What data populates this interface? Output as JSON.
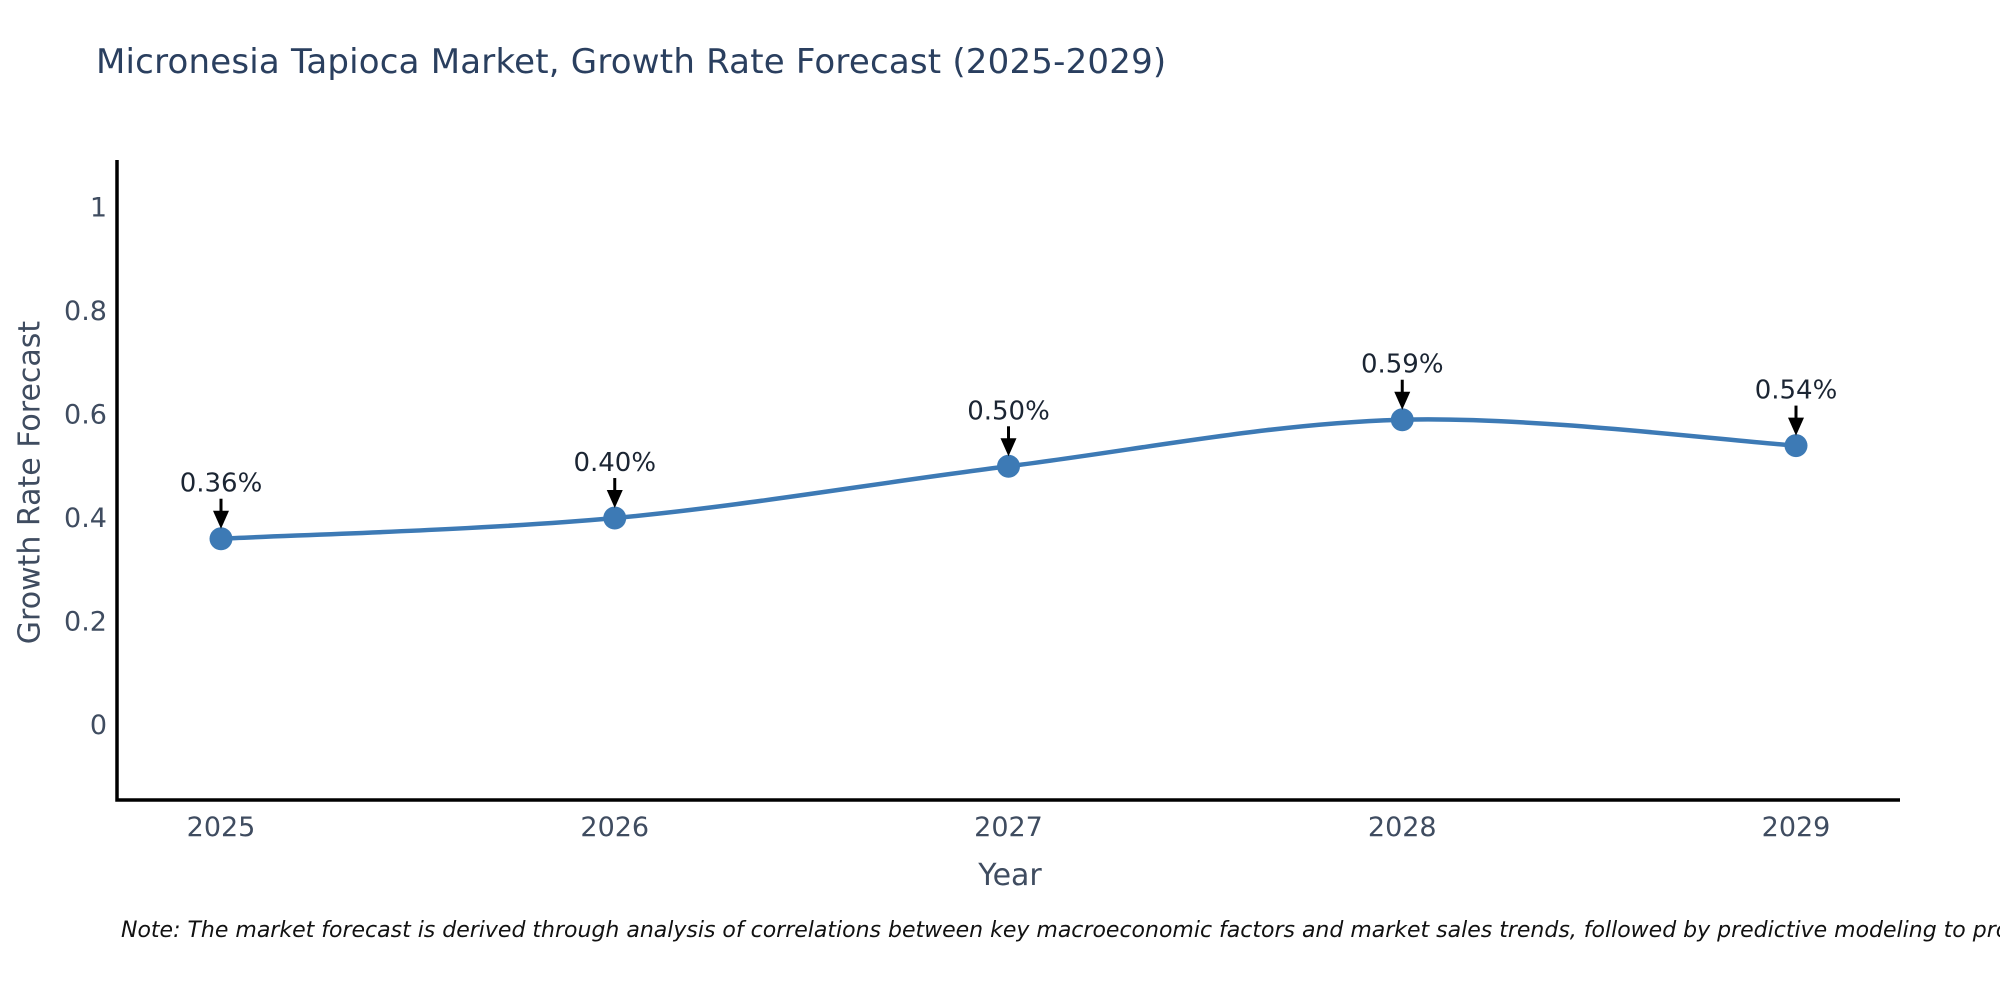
{
  "note": "Note: The market forecast is derived through analysis of correlations between key macroeconomic factors and market sales trends, followed by predictive modeling to project future sales",
  "chart_data": {
    "type": "line",
    "title": "Micronesia Tapioca Market, Growth Rate Forecast (2025-2029)",
    "xlabel": "Year",
    "ylabel": "Growth Rate Forecast",
    "x": [
      2025,
      2026,
      2027,
      2028,
      2029
    ],
    "values": [
      0.36,
      0.4,
      0.5,
      0.59,
      0.54
    ],
    "labels": [
      "0.36%",
      "0.40%",
      "0.50%",
      "0.59%",
      "0.54%"
    ],
    "yticks": [
      0,
      0.2,
      0.4,
      0.6,
      0.8,
      1
    ],
    "ytick_labels": [
      "0",
      "0.2",
      "0.4",
      "0.6",
      "0.8",
      "1"
    ],
    "ylim": [
      -0.145,
      1.092
    ],
    "grid": false,
    "legend_position": "none",
    "line_color": "#3d7ab5",
    "marker_color": "#3d7ab5",
    "annotation_arrow_color": "#000000",
    "axis_color": "#000000",
    "line_shape": "spline"
  }
}
